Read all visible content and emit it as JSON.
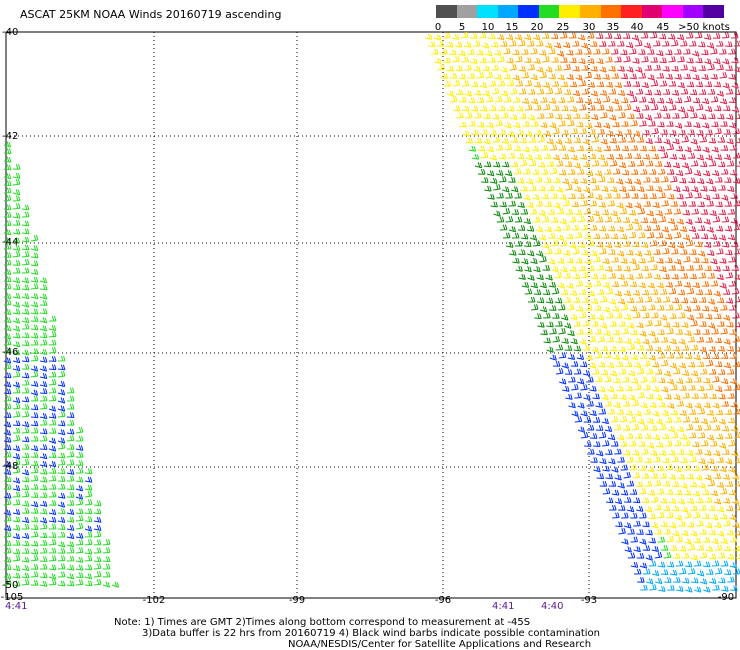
{
  "title": "ASCAT 25KM NOAA Winds 20160719 ascending",
  "legend": {
    "labels": [
      "0",
      "5",
      "10",
      "15",
      "20",
      "25",
      "30",
      "35",
      "40",
      "45",
      ">50 knots"
    ],
    "colors": [
      "#505050",
      "#a0a0a0",
      "#00e0ff",
      "#00a8ff",
      "#0030ff",
      "#22dd22",
      "#ffee00",
      "#ffb000",
      "#ff7000",
      "#ff2020",
      "#e00070",
      "#ff00ff",
      "#a000ff",
      "#5000a0"
    ]
  },
  "axes": {
    "lat_labels": [
      "-40",
      "-42",
      "-44",
      "-46",
      "-48",
      "-50"
    ],
    "lon_labels": [
      "-105",
      "-102",
      "-99",
      "-96",
      "-93",
      "-90"
    ]
  },
  "times": [
    "4:41",
    "4:41",
    "4:40"
  ],
  "notes": [
    "Note: 1) Times are GMT 2)Times along bottom correspond to measurement at -45S",
    "3)Data buffer is 22 hrs from 20160719 4) Black wind barbs indicate possible contamination",
    "NOAA/NESDIS/Center for Satellite Applications and Research"
  ]
}
